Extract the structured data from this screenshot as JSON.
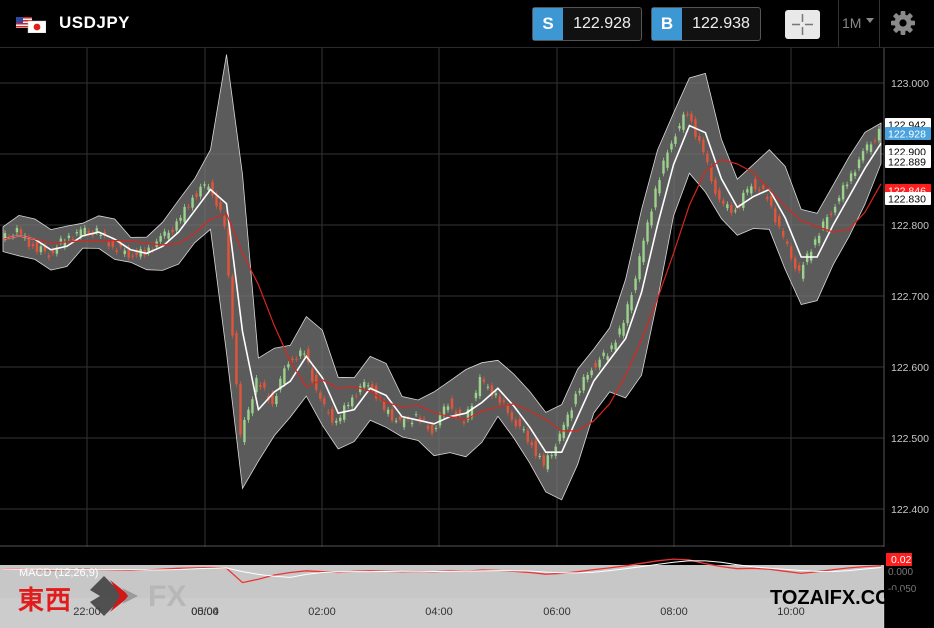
{
  "header": {
    "symbol": "USDJPY",
    "sell_label": "S",
    "sell_price": "122.928",
    "buy_label": "B",
    "buy_price": "122.938",
    "timeframe": "1M",
    "icons": [
      "flag-icon",
      "crosshair-icon",
      "dropdown-arrow-icon",
      "gear-icon"
    ]
  },
  "chart_data": {
    "type": "line",
    "instrument": "USDJPY",
    "ylim": [
      122.35,
      123.05
    ],
    "y_ticks": [
      "123.000",
      "122.900",
      "122.800",
      "122.700",
      "122.600",
      "122.500",
      "122.400"
    ],
    "x_ticks": [
      "22:00",
      "00:00",
      "02:00",
      "04:00",
      "06:00",
      "08:00",
      "10:00"
    ],
    "x_tick_note": "05/04",
    "series": [
      {
        "values": [
          122.78,
          122.79,
          122.77,
          122.76,
          122.78,
          122.79,
          122.79,
          122.77,
          122.76,
          122.76,
          122.78,
          122.8,
          122.84,
          122.86,
          122.8,
          122.5,
          122.58,
          122.55,
          122.61,
          122.62,
          122.55,
          122.52,
          122.56,
          122.58,
          122.54,
          122.52,
          122.53,
          122.51,
          122.55,
          122.52,
          122.58,
          122.56,
          122.53,
          122.5,
          122.46,
          122.5,
          122.56,
          122.6,
          122.62,
          122.66,
          122.75,
          122.85,
          122.92,
          122.96,
          122.9,
          122.83,
          122.82,
          122.86,
          122.84,
          122.78,
          122.73,
          122.78,
          122.82,
          122.86,
          122.9,
          122.93
        ]
      }
    ],
    "price_labels": [
      {
        "text": "122.942",
        "color": "#ffffff"
      },
      {
        "text": "122.928",
        "color": "#4aa3df"
      },
      {
        "text": "122.900",
        "color": "#ffffff"
      },
      {
        "text": "122.889",
        "color": "#ffffff"
      },
      {
        "text": "122.846",
        "color": "#ff1e1e"
      },
      {
        "text": "122.830",
        "color": "#ffffff"
      }
    ],
    "macd": {
      "label": "MACD (12,26,9)",
      "levels": [
        "0.02",
        "0.000",
        "-0.050"
      ],
      "values": [
        0.002,
        0.003,
        0.001,
        0.0,
        0.001,
        0.002,
        0.001,
        0.0,
        -0.001,
        0.0,
        0.002,
        0.004,
        0.005,
        0.006,
        0.004,
        -0.03,
        -0.022,
        -0.012,
        -0.006,
        -0.002,
        -0.004,
        -0.006,
        -0.003,
        -0.002,
        -0.003,
        -0.004,
        -0.003,
        -0.004,
        -0.002,
        -0.003,
        0.0,
        -0.001,
        -0.003,
        -0.006,
        -0.01,
        -0.008,
        -0.004,
        0.001,
        0.005,
        0.01,
        0.016,
        0.022,
        0.026,
        0.024,
        0.015,
        0.008,
        0.003,
        0.004,
        0.002,
        -0.003,
        -0.008,
        -0.004,
        0.001,
        0.005,
        0.008,
        0.01
      ]
    }
  },
  "watermark": {
    "cn": "東西",
    "fx": "FX",
    "site": "TOZAIFX.COM"
  },
  "colors": {
    "background": "#000000",
    "candle_up": "#9bd38c",
    "candle_down": "#e2553a",
    "band_fill": "#7a7a7a",
    "ma_white": "#ffffff",
    "ma_red": "#d8261e",
    "accent_blue": "#3d97d3"
  }
}
